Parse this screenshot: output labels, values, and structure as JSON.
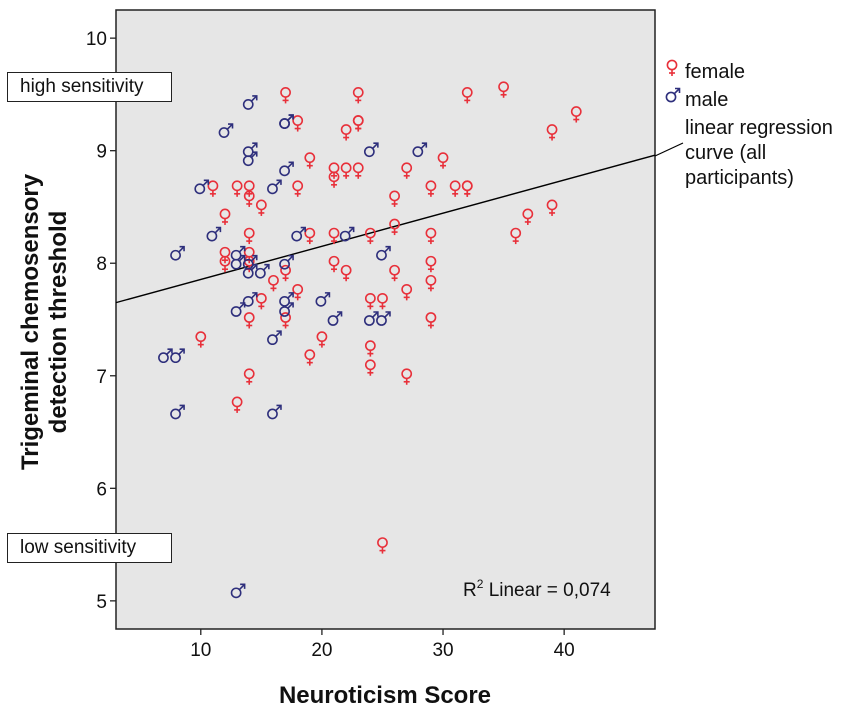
{
  "chart_data": {
    "type": "scatter",
    "xlabel": "Neuroticism Score",
    "ylabel_line1": "Trigeminal chemosensory",
    "ylabel_line2": "detection threshold",
    "xlim": [
      3,
      47.5
    ],
    "ylim": [
      4.75,
      10.25
    ],
    "xticks": [
      10,
      20,
      30,
      40
    ],
    "yticks": [
      5,
      6,
      7,
      8,
      9,
      10
    ],
    "grid": false,
    "legend_placement": "right, outside plot",
    "legend": {
      "female": "female",
      "male": "male",
      "regression_line1": "linear regression",
      "regression_line2": "curve (all",
      "regression_line3": "participants)"
    },
    "annotations": {
      "high": "high sensitivity",
      "low": "low sensitivity",
      "r2_prefix": "R",
      "r2_sup": "2",
      "r2_rest": " Linear = 0,074"
    },
    "colors": {
      "female": "#e8303a",
      "male": "#2e2f7c",
      "panel_bg": "#e6e6e6",
      "line": "#000000"
    },
    "regression": {
      "x": [
        3,
        47.5
      ],
      "y": [
        7.65,
        8.96
      ]
    },
    "series": [
      {
        "name": "female",
        "points": [
          [
            17,
            9.5
          ],
          [
            23,
            9.5
          ],
          [
            35,
            9.55
          ],
          [
            32,
            9.5
          ],
          [
            41,
            9.33
          ],
          [
            39,
            9.17
          ],
          [
            18,
            9.25
          ],
          [
            22,
            9.17
          ],
          [
            23,
            9.25
          ],
          [
            23,
            9.25
          ],
          [
            19,
            8.92
          ],
          [
            30,
            8.92
          ],
          [
            21,
            8.83
          ],
          [
            22,
            8.83
          ],
          [
            23,
            8.83
          ],
          [
            27,
            8.83
          ],
          [
            21,
            8.75
          ],
          [
            11,
            8.67
          ],
          [
            13,
            8.67
          ],
          [
            14,
            8.67
          ],
          [
            18,
            8.67
          ],
          [
            29,
            8.67
          ],
          [
            31,
            8.67
          ],
          [
            32,
            8.67
          ],
          [
            32,
            8.67
          ],
          [
            14,
            8.58
          ],
          [
            15,
            8.5
          ],
          [
            26,
            8.58
          ],
          [
            39,
            8.5
          ],
          [
            12,
            8.42
          ],
          [
            37,
            8.42
          ],
          [
            26,
            8.33
          ],
          [
            14,
            8.25
          ],
          [
            19,
            8.25
          ],
          [
            21,
            8.25
          ],
          [
            24,
            8.25
          ],
          [
            29,
            8.25
          ],
          [
            36,
            8.25
          ],
          [
            12,
            8.08
          ],
          [
            14,
            8.08
          ],
          [
            12,
            8.0
          ],
          [
            14,
            8.0
          ],
          [
            21,
            8.0
          ],
          [
            29,
            8.0
          ],
          [
            17,
            7.92
          ],
          [
            22,
            7.92
          ],
          [
            26,
            7.92
          ],
          [
            16,
            7.83
          ],
          [
            29,
            7.83
          ],
          [
            18,
            7.75
          ],
          [
            27,
            7.75
          ],
          [
            15,
            7.67
          ],
          [
            24,
            7.67
          ],
          [
            25,
            7.67
          ],
          [
            17,
            7.5
          ],
          [
            14,
            7.5
          ],
          [
            29,
            7.5
          ],
          [
            10,
            7.33
          ],
          [
            20,
            7.33
          ],
          [
            24,
            7.25
          ],
          [
            19,
            7.17
          ],
          [
            24,
            7.08
          ],
          [
            14,
            7.0
          ],
          [
            27,
            7.0
          ],
          [
            13,
            6.75
          ],
          [
            25,
            5.5
          ]
        ]
      },
      {
        "name": "male",
        "points": [
          [
            14,
            9.42
          ],
          [
            17,
            9.25
          ],
          [
            17,
            9.25
          ],
          [
            12,
            9.17
          ],
          [
            14,
            9.0
          ],
          [
            14,
            8.92
          ],
          [
            24,
            9.0
          ],
          [
            28,
            9.0
          ],
          [
            17,
            8.83
          ],
          [
            10,
            8.67
          ],
          [
            16,
            8.67
          ],
          [
            11,
            8.25
          ],
          [
            18,
            8.25
          ],
          [
            22,
            8.25
          ],
          [
            8,
            8.08
          ],
          [
            13,
            8.08
          ],
          [
            25,
            8.08
          ],
          [
            13,
            8.0
          ],
          [
            14,
            8.0
          ],
          [
            17,
            8.0
          ],
          [
            14,
            7.92
          ],
          [
            15,
            7.92
          ],
          [
            14,
            7.67
          ],
          [
            17,
            7.67
          ],
          [
            20,
            7.67
          ],
          [
            13,
            7.58
          ],
          [
            17,
            7.58
          ],
          [
            21,
            7.5
          ],
          [
            24,
            7.5
          ],
          [
            25,
            7.5
          ],
          [
            16,
            7.33
          ],
          [
            7,
            7.17
          ],
          [
            8,
            7.17
          ],
          [
            8,
            6.67
          ],
          [
            16,
            6.67
          ],
          [
            13,
            5.08
          ]
        ]
      }
    ]
  }
}
